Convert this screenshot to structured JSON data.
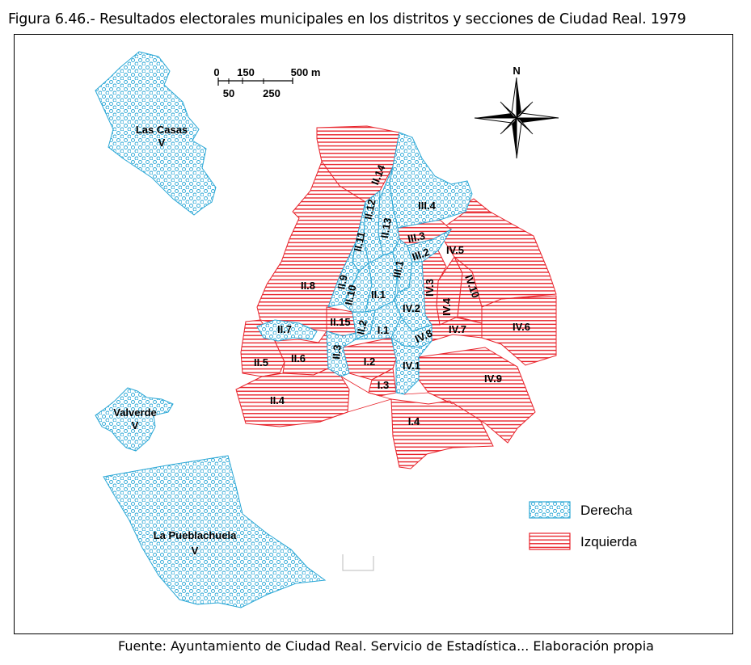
{
  "title": "Figura 6.46.- Resultados electorales municipales en los distritos y secciones de Ciudad Real. 1979",
  "source": "Fuente: Ayuntamiento de Ciudad Real. Servicio de Estadística... Elaboración propia",
  "north": "N",
  "scale": {
    "top": [
      "0",
      "150",
      "500 m"
    ],
    "bottom": [
      "50",
      "250"
    ]
  },
  "legend": [
    {
      "key": "derecha",
      "label": "Derecha",
      "color": "#2aa7d6"
    },
    {
      "key": "izquierda",
      "label": "Izquierda",
      "color": "#e8232b"
    }
  ],
  "areas": {
    "las_casas": {
      "name": "Las Casas",
      "district": "V",
      "result": "derecha"
    },
    "valverde": {
      "name": "Valverde",
      "district": "V",
      "result": "derecha"
    },
    "pueblachuela": {
      "name": "La Pueblachuela",
      "district": "V",
      "result": "derecha"
    }
  },
  "sections": [
    {
      "id": "I.1",
      "result": "derecha"
    },
    {
      "id": "I.2",
      "result": "izquierda"
    },
    {
      "id": "I.3",
      "result": "izquierda"
    },
    {
      "id": "I.4",
      "result": "izquierda"
    },
    {
      "id": "II.1",
      "result": "derecha"
    },
    {
      "id": "II.2",
      "result": "derecha"
    },
    {
      "id": "II.3",
      "result": "derecha"
    },
    {
      "id": "II.4",
      "result": "izquierda"
    },
    {
      "id": "II.5",
      "result": "izquierda"
    },
    {
      "id": "II.6",
      "result": "izquierda"
    },
    {
      "id": "II.7",
      "result": "derecha"
    },
    {
      "id": "II.8",
      "result": "izquierda"
    },
    {
      "id": "II.9",
      "result": "derecha"
    },
    {
      "id": "II.10",
      "result": "derecha"
    },
    {
      "id": "II.11",
      "result": "derecha"
    },
    {
      "id": "II.12",
      "result": "derecha"
    },
    {
      "id": "II.13",
      "result": "derecha"
    },
    {
      "id": "II.14",
      "result": "izquierda"
    },
    {
      "id": "II.15",
      "result": "izquierda"
    },
    {
      "id": "III.1",
      "result": "derecha"
    },
    {
      "id": "III.2",
      "result": "derecha"
    },
    {
      "id": "III.3",
      "result": "izquierda"
    },
    {
      "id": "III.4",
      "result": "derecha"
    },
    {
      "id": "IV.1",
      "result": "derecha"
    },
    {
      "id": "IV.2",
      "result": "derecha"
    },
    {
      "id": "IV.3",
      "result": "izquierda"
    },
    {
      "id": "IV.4",
      "result": "izquierda"
    },
    {
      "id": "IV.5",
      "result": "izquierda"
    },
    {
      "id": "IV.6",
      "result": "izquierda"
    },
    {
      "id": "IV.7",
      "result": "izquierda"
    },
    {
      "id": "IV.8",
      "result": "derecha"
    },
    {
      "id": "IV.9",
      "result": "izquierda"
    },
    {
      "id": "IV.10",
      "result": "izquierda"
    }
  ]
}
